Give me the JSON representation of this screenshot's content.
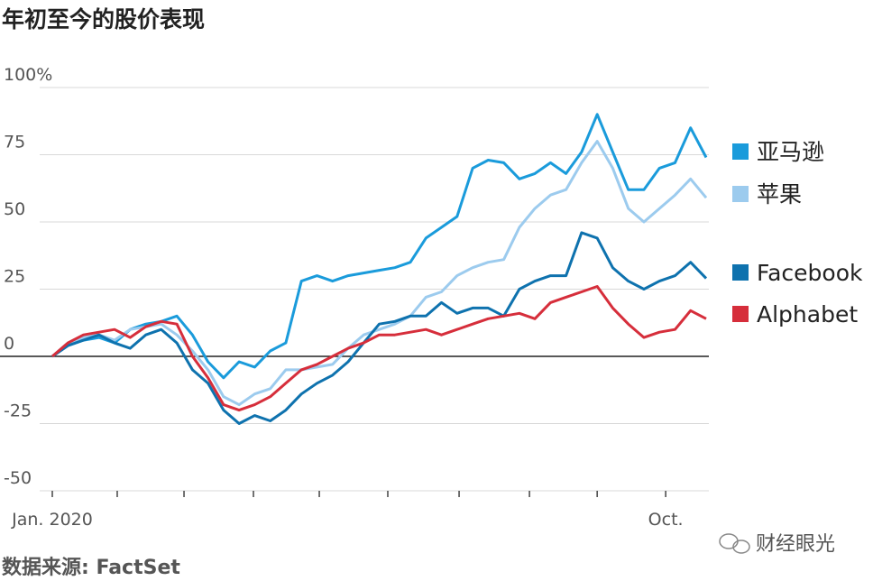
{
  "chart_data": {
    "type": "line",
    "title": "年初至今的股价表现",
    "source": "数据来源: FactSet",
    "watermark": "财经眼光",
    "x": [
      0,
      1,
      2,
      3,
      4,
      5,
      6,
      7,
      8,
      9,
      10,
      11,
      12,
      13,
      14,
      15,
      16,
      17,
      18,
      19,
      20,
      21,
      22,
      23,
      24,
      25,
      26,
      27,
      28,
      29,
      30,
      31,
      32,
      33,
      34,
      35,
      36,
      37,
      38,
      39,
      40,
      41,
      42
    ],
    "xlim": [
      0,
      42
    ],
    "xticks": [
      {
        "value": 0,
        "label": "Jan. 2020"
      },
      4.17,
      8.46,
      12.92,
      17.15,
      21.55,
      26.13,
      30.65,
      35.0,
      {
        "value": 39.4,
        "label": "Oct."
      }
    ],
    "ylim": [
      -50,
      100
    ],
    "yticks": [
      {
        "value": -50,
        "label": "-50"
      },
      {
        "value": -25,
        "label": "-25"
      },
      0,
      25,
      50,
      75,
      {
        "value": 100,
        "label": "100%"
      }
    ],
    "grid": true,
    "series": [
      {
        "name": "亚马逊",
        "color": "#1a9bdb",
        "values": [
          0,
          4,
          6,
          7,
          5,
          10,
          12,
          13,
          15,
          8,
          -2,
          -8,
          -2,
          -4,
          2,
          5,
          28,
          30,
          28,
          30,
          31,
          32,
          33,
          35,
          44,
          48,
          52,
          70,
          73,
          72,
          66,
          68,
          72,
          68,
          76,
          90,
          76,
          62,
          62,
          70,
          72,
          85,
          74
        ]
      },
      {
        "name": "苹果",
        "color": "#9ccbee",
        "values": [
          0,
          5,
          7,
          8,
          6,
          10,
          11,
          12,
          8,
          2,
          -5,
          -15,
          -18,
          -14,
          -12,
          -5,
          -5,
          -4,
          -3,
          3,
          8,
          10,
          12,
          15,
          22,
          24,
          30,
          33,
          35,
          36,
          48,
          55,
          60,
          62,
          72,
          80,
          70,
          55,
          50,
          55,
          60,
          66,
          59
        ]
      },
      {
        "name": "Facebook",
        "color": "#0e72ae",
        "values": [
          0,
          4,
          6,
          8,
          5,
          3,
          8,
          10,
          5,
          -5,
          -10,
          -20,
          -25,
          -22,
          -24,
          -20,
          -14,
          -10,
          -7,
          -2,
          5,
          12,
          13,
          15,
          15,
          20,
          16,
          18,
          18,
          15,
          25,
          28,
          30,
          30,
          46,
          44,
          33,
          28,
          25,
          28,
          30,
          35,
          29
        ]
      },
      {
        "name": "Alphabet",
        "color": "#d62e3b",
        "values": [
          0,
          5,
          8,
          9,
          10,
          7,
          11,
          13,
          12,
          0,
          -8,
          -18,
          -20,
          -18,
          -15,
          -10,
          -5,
          -3,
          0,
          3,
          5,
          8,
          8,
          9,
          10,
          8,
          10,
          12,
          14,
          15,
          16,
          14,
          20,
          22,
          24,
          26,
          18,
          12,
          7,
          9,
          10,
          17,
          14
        ]
      }
    ]
  }
}
